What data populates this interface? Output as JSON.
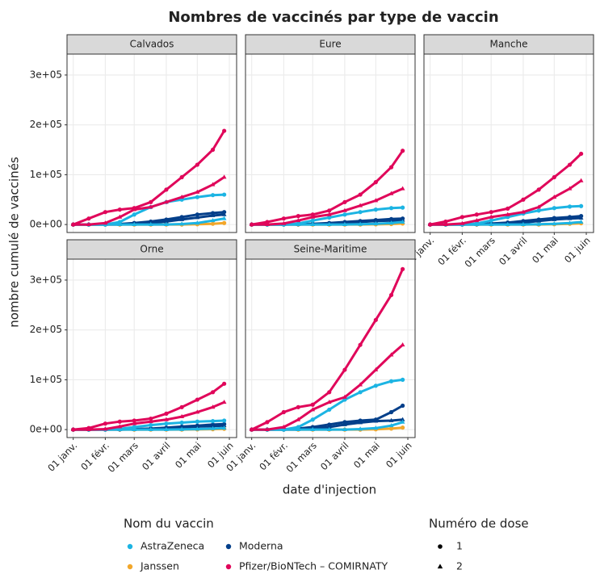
{
  "chart_data": {
    "type": "line",
    "title": "Nombres de vaccinés par type de vaccin",
    "xlabel": "date d'injection",
    "ylabel": "nombre cumulé de vaccinés",
    "x": [
      0,
      15,
      31,
      45,
      59,
      75,
      90,
      105,
      120,
      135,
      146
    ],
    "xlim": [
      -6,
      158
    ],
    "xticks": [
      {
        "value": 0,
        "label": "01 janv."
      },
      {
        "value": 31,
        "label": "01 févr."
      },
      {
        "value": 59,
        "label": "01 mars"
      },
      {
        "value": 90,
        "label": "01 avril"
      },
      {
        "value": 120,
        "label": "01 mai"
      },
      {
        "value": 151,
        "label": "01 juin"
      }
    ],
    "ylim": [
      -16000,
      342000
    ],
    "yticks": [
      {
        "value": 0,
        "label": "0e+00"
      },
      {
        "value": 100000,
        "label": "1e+05"
      },
      {
        "value": 200000,
        "label": "2e+05"
      },
      {
        "value": 300000,
        "label": "3e+05"
      }
    ],
    "grid": true,
    "legend": {
      "title": "Nom du vaccin",
      "items": [
        {
          "name": "AstraZeneca",
          "color": "#1cb4e3"
        },
        {
          "name": "Janssen",
          "color": "#f2a72b"
        },
        {
          "name": "Moderna",
          "color": "#033f8a"
        },
        {
          "name": "Pfizer/BioNTech – COMIRNATY",
          "color": "#e0065a"
        }
      ]
    },
    "shape_legend": {
      "title": "Numéro de dose",
      "items": [
        1,
        2
      ]
    },
    "facets": [
      {
        "title": "Calvados",
        "series": [
          {
            "name": "Janssen",
            "dose": 1,
            "values": [
              0,
              0,
              0,
              0,
              0,
              0,
              0,
              0,
              500,
              1500,
              3000
            ]
          },
          {
            "name": "Moderna",
            "dose": 1,
            "values": [
              0,
              0,
              0,
              1000,
              3000,
              6000,
              10000,
              15000,
              20000,
              23000,
              25000
            ]
          },
          {
            "name": "Moderna",
            "dose": 2,
            "values": [
              0,
              0,
              0,
              0,
              1000,
              3000,
              6000,
              10000,
              14000,
              18000,
              20000
            ]
          },
          {
            "name": "AstraZeneca",
            "dose": 1,
            "values": [
              0,
              0,
              0,
              5000,
              20000,
              35000,
              45000,
              50000,
              55000,
              59000,
              60000
            ]
          },
          {
            "name": "AstraZeneca",
            "dose": 2,
            "values": [
              0,
              0,
              0,
              0,
              0,
              0,
              0,
              1000,
              3000,
              8000,
              12000
            ]
          },
          {
            "name": "Pfizer/BioNTech – COMIRNATY",
            "dose": 2,
            "values": [
              0,
              0,
              3000,
              15000,
              30000,
              35000,
              45000,
              55000,
              65000,
              80000,
              95000
            ]
          },
          {
            "name": "Pfizer/BioNTech – COMIRNATY",
            "dose": 1,
            "values": [
              0,
              12000,
              25000,
              30000,
              33000,
              45000,
              70000,
              95000,
              120000,
              150000,
              188000
            ]
          }
        ]
      },
      {
        "title": "Eure",
        "series": [
          {
            "name": "Janssen",
            "dose": 1,
            "values": [
              0,
              0,
              0,
              0,
              0,
              0,
              0,
              0,
              300,
              1000,
              2000
            ]
          },
          {
            "name": "Moderna",
            "dose": 1,
            "values": [
              0,
              0,
              0,
              500,
              1500,
              3000,
              5000,
              7000,
              9000,
              11000,
              12000
            ]
          },
          {
            "name": "Moderna",
            "dose": 2,
            "values": [
              0,
              0,
              0,
              0,
              500,
              1500,
              3000,
              5000,
              7000,
              8000,
              9000
            ]
          },
          {
            "name": "AstraZeneca",
            "dose": 1,
            "values": [
              0,
              0,
              0,
              2000,
              8000,
              14000,
              20000,
              25000,
              30000,
              33000,
              34000
            ]
          },
          {
            "name": "AstraZeneca",
            "dose": 2,
            "values": [
              0,
              0,
              0,
              0,
              0,
              0,
              0,
              500,
              1500,
              3000,
              5000
            ]
          },
          {
            "name": "Pfizer/BioNTech – COMIRNATY",
            "dose": 2,
            "values": [
              0,
              0,
              2000,
              8000,
              15000,
              20000,
              28000,
              38000,
              48000,
              62000,
              72000
            ]
          },
          {
            "name": "Pfizer/BioNTech – COMIRNATY",
            "dose": 1,
            "values": [
              0,
              5000,
              12000,
              17000,
              20000,
              28000,
              45000,
              60000,
              85000,
              115000,
              148000
            ]
          }
        ]
      },
      {
        "title": "Manche",
        "series": [
          {
            "name": "Janssen",
            "dose": 1,
            "values": [
              0,
              0,
              0,
              0,
              0,
              0,
              0,
              0,
              500,
              1500,
              2500
            ]
          },
          {
            "name": "Moderna",
            "dose": 1,
            "values": [
              0,
              0,
              0,
              500,
              2000,
              4000,
              7000,
              10000,
              13000,
              15000,
              17000
            ]
          },
          {
            "name": "Moderna",
            "dose": 2,
            "values": [
              0,
              0,
              0,
              0,
              500,
              2000,
              4000,
              7000,
              10000,
              12000,
              13000
            ]
          },
          {
            "name": "AstraZeneca",
            "dose": 1,
            "values": [
              0,
              0,
              0,
              2000,
              8000,
              15000,
              22000,
              28000,
              33000,
              36000,
              37000
            ]
          },
          {
            "name": "AstraZeneca",
            "dose": 2,
            "values": [
              0,
              0,
              0,
              0,
              0,
              0,
              0,
              500,
              1500,
              3000,
              5000
            ]
          },
          {
            "name": "Pfizer/BioNTech – COMIRNATY",
            "dose": 2,
            "values": [
              0,
              0,
              2000,
              8000,
              15000,
              20000,
              25000,
              35000,
              55000,
              72000,
              88000
            ]
          },
          {
            "name": "Pfizer/BioNTech – COMIRNATY",
            "dose": 1,
            "values": [
              0,
              6000,
              15000,
              20000,
              25000,
              32000,
              50000,
              70000,
              95000,
              120000,
              142000
            ]
          }
        ]
      },
      {
        "title": "Orne",
        "series": [
          {
            "name": "Janssen",
            "dose": 1,
            "values": [
              0,
              0,
              0,
              0,
              0,
              0,
              0,
              0,
              300,
              800,
              1500
            ]
          },
          {
            "name": "Moderna",
            "dose": 1,
            "values": [
              0,
              0,
              0,
              300,
              1000,
              2000,
              4000,
              6000,
              8000,
              10000,
              11000
            ]
          },
          {
            "name": "Moderna",
            "dose": 2,
            "values": [
              0,
              0,
              0,
              0,
              300,
              1000,
              2500,
              4000,
              6000,
              7000,
              8000
            ]
          },
          {
            "name": "AstraZeneca",
            "dose": 1,
            "values": [
              0,
              0,
              0,
              1500,
              5000,
              9000,
              12000,
              14000,
              16000,
              17000,
              18000
            ]
          },
          {
            "name": "AstraZeneca",
            "dose": 2,
            "values": [
              0,
              0,
              0,
              0,
              0,
              0,
              0,
              300,
              1000,
              2000,
              3000
            ]
          },
          {
            "name": "Pfizer/BioNTech – COMIRNATY",
            "dose": 2,
            "values": [
              0,
              0,
              1000,
              6000,
              12000,
              16000,
              20000,
              26000,
              35000,
              45000,
              55000
            ]
          },
          {
            "name": "Pfizer/BioNTech – COMIRNATY",
            "dose": 1,
            "values": [
              0,
              3000,
              12000,
              16000,
              18000,
              22000,
              32000,
              45000,
              60000,
              75000,
              92000
            ]
          }
        ]
      },
      {
        "title": "Seine-Maritime",
        "series": [
          {
            "name": "Janssen",
            "dose": 1,
            "values": [
              0,
              0,
              0,
              0,
              0,
              0,
              0,
              0,
              500,
              2000,
              4000
            ]
          },
          {
            "name": "Moderna",
            "dose": 1,
            "values": [
              0,
              0,
              0,
              2000,
              5000,
              10000,
              15000,
              18000,
              20000,
              35000,
              48000
            ]
          },
          {
            "name": "Moderna",
            "dose": 2,
            "values": [
              0,
              0,
              0,
              0,
              2000,
              5000,
              10000,
              14000,
              17000,
              18000,
              20000
            ]
          },
          {
            "name": "AstraZeneca",
            "dose": 1,
            "values": [
              0,
              0,
              0,
              5000,
              20000,
              40000,
              60000,
              75000,
              88000,
              97000,
              100000
            ]
          },
          {
            "name": "AstraZeneca",
            "dose": 2,
            "values": [
              0,
              0,
              0,
              0,
              0,
              0,
              0,
              1000,
              3000,
              8000,
              15000
            ]
          },
          {
            "name": "Pfizer/BioNTech – COMIRNATY",
            "dose": 2,
            "values": [
              0,
              0,
              5000,
              20000,
              40000,
              55000,
              65000,
              90000,
              120000,
              150000,
              170000
            ]
          },
          {
            "name": "Pfizer/BioNTech – COMIRNATY",
            "dose": 1,
            "values": [
              0,
              15000,
              35000,
              45000,
              50000,
              75000,
              120000,
              170000,
              220000,
              270000,
              322000
            ]
          }
        ]
      }
    ]
  }
}
